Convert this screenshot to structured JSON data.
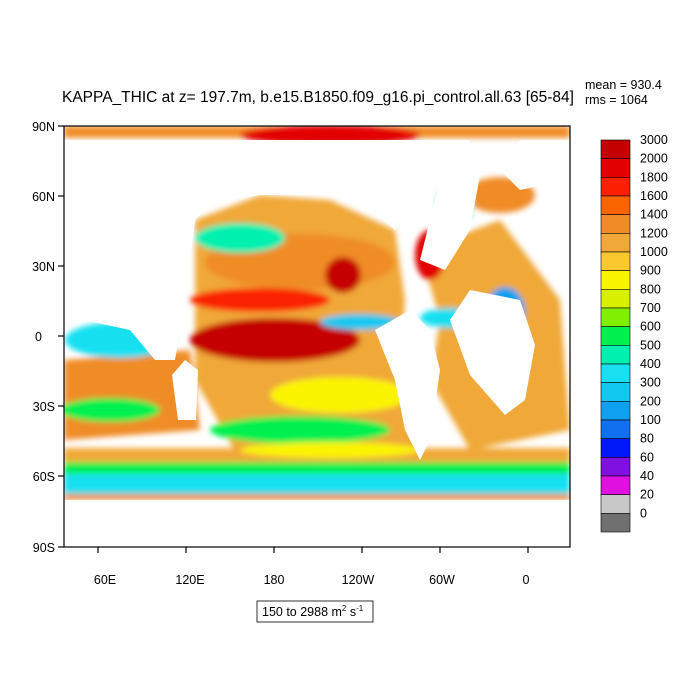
{
  "title": "KAPPA_THIC at z= 197.7m, b.e15.B1850.f09_g16.pi_control.all.63 [65-84]",
  "stats": {
    "mean": "mean = 930.4",
    "rms": "rms = 1064"
  },
  "lat_labels": [
    "90N",
    "60N",
    "30N",
    "0",
    "30S",
    "60S",
    "90S"
  ],
  "lon_labels": [
    "60E",
    "120E",
    "180",
    "120W",
    "60W",
    "0"
  ],
  "range_label": {
    "text": "150 to 2988 m",
    "sup1": "2",
    "mid": " s",
    "sup2": "-1"
  },
  "colorbar": {
    "labels": [
      "3000",
      "2000",
      "1800",
      "1600",
      "1400",
      "1200",
      "1000",
      "900",
      "800",
      "700",
      "600",
      "500",
      "400",
      "300",
      "200",
      "100",
      "80",
      "60",
      "40",
      "20",
      "0"
    ],
    "colors": [
      "#c40000",
      "#e20000",
      "#fa2000",
      "#f86400",
      "#f08c28",
      "#f0a838",
      "#fcc830",
      "#faf400",
      "#d8f000",
      "#80f000",
      "#00f050",
      "#00f0b0",
      "#18e0f0",
      "#12c8f0",
      "#10a0f0",
      "#1070f0",
      "#0018f8",
      "#8010e0",
      "#e010e0",
      "#c8c8c8",
      "#707070"
    ]
  },
  "map_regions": {
    "ocean_base": "#f0a838",
    "continents": "#ffffff"
  }
}
